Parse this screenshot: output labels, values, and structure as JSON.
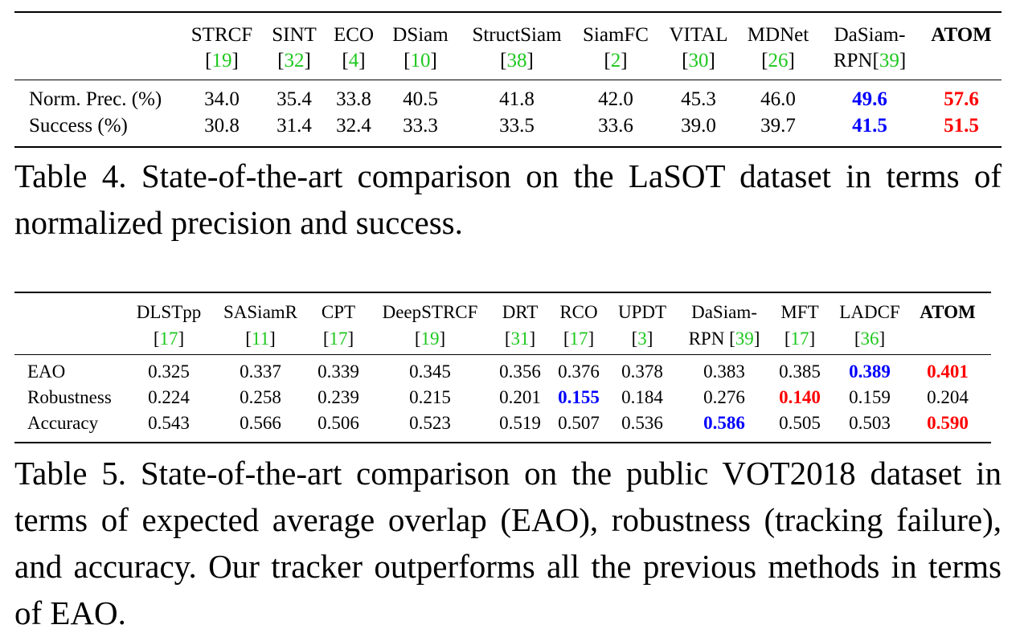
{
  "table4": {
    "headers": [
      {
        "name": "STRCF",
        "ref": "19"
      },
      {
        "name": "SINT",
        "ref": "32"
      },
      {
        "name": "ECO",
        "ref": "4"
      },
      {
        "name": "DSiam",
        "ref": "10"
      },
      {
        "name": "StructSiam",
        "ref": "38"
      },
      {
        "name": "SiamFC",
        "ref": "2"
      },
      {
        "name": "VITAL",
        "ref": "30"
      },
      {
        "name": "MDNet",
        "ref": "26"
      },
      {
        "name": "DaSiam-",
        "name2": "RPN",
        "ref": "39"
      },
      {
        "name": "ATOM",
        "ref": ""
      }
    ],
    "rows": [
      {
        "label": "Norm. Prec. (%)",
        "values": [
          "34.0",
          "35.4",
          "33.8",
          "40.5",
          "41.8",
          "42.0",
          "45.3",
          "46.0",
          "49.6",
          "57.6"
        ]
      },
      {
        "label": "Success (%)",
        "values": [
          "30.8",
          "31.4",
          "32.4",
          "33.3",
          "33.5",
          "33.6",
          "39.0",
          "39.7",
          "41.5",
          "51.5"
        ]
      }
    ],
    "caption": "Table 4. State-of-the-art comparison on the LaSOT dataset in terms of normalized precision and success."
  },
  "table5": {
    "headers": [
      {
        "name": "DLSTpp",
        "ref": "17"
      },
      {
        "name": "SASiamR",
        "ref": "11"
      },
      {
        "name": "CPT",
        "ref": "17"
      },
      {
        "name": "DeepSTRCF",
        "ref": "19"
      },
      {
        "name": "DRT",
        "ref": "31"
      },
      {
        "name": "RCO",
        "ref": "17"
      },
      {
        "name": "UPDT",
        "ref": "3"
      },
      {
        "name": "DaSiam-",
        "name2": "RPN",
        "ref": "39"
      },
      {
        "name": "MFT",
        "ref": "17"
      },
      {
        "name": "LADCF",
        "ref": "36"
      },
      {
        "name": "ATOM",
        "ref": ""
      }
    ],
    "rows": [
      {
        "label": "EAO",
        "values": [
          "0.325",
          "0.337",
          "0.339",
          "0.345",
          "0.356",
          "0.376",
          "0.378",
          "0.383",
          "0.385",
          "0.389",
          "0.401"
        ]
      },
      {
        "label": "Robustness",
        "values": [
          "0.224",
          "0.258",
          "0.239",
          "0.215",
          "0.201",
          "0.155",
          "0.184",
          "0.276",
          "0.140",
          "0.159",
          "0.204"
        ]
      },
      {
        "label": "Accuracy",
        "values": [
          "0.543",
          "0.566",
          "0.506",
          "0.523",
          "0.519",
          "0.507",
          "0.536",
          "0.586",
          "0.505",
          "0.503",
          "0.590"
        ]
      }
    ],
    "caption": "Table 5. State-of-the-art comparison on the public VOT2018 dataset in terms of expected average overlap (EAO), robustness (tracking failure), and accuracy. Our tracker outperforms all the previous methods in terms of EAO."
  },
  "highlight_colors": {
    "best": "#ff0000",
    "second": "#0000ff",
    "citation": "#1ec81e"
  }
}
